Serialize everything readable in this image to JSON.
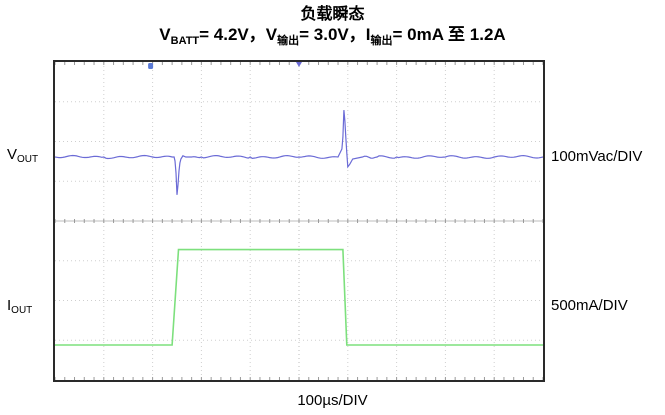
{
  "title": {
    "line1": "负载瞬态",
    "line2": {
      "v": "V",
      "batt_sub": "BATT",
      "batt_text": "= 4.2V，V",
      "vout_sub": "输出",
      "vout_text": "= 3.0V，I",
      "iout_sub": "输出",
      "iout_text": "= 0mA 至 1.2A"
    }
  },
  "channels": {
    "vout": {
      "main": "V",
      "sub": "OUT",
      "scale": "100mVac/DIV",
      "color": "#6b6bd6"
    },
    "iout": {
      "main": "I",
      "sub": "OUT",
      "scale": "500mA/DIV",
      "color": "#7de07d"
    }
  },
  "xscale": "100µs/DIV",
  "chart_data": {
    "type": "line",
    "x_unit": "µs",
    "xlim": [
      0,
      1000
    ],
    "divisions": {
      "x": 10,
      "y": 8
    },
    "grid": "dotted",
    "series": [
      {
        "name": "VOUT",
        "unit": "mV (AC coupled)",
        "scale_per_div": 100,
        "x": [
          0,
          100,
          200,
          244,
          246,
          248,
          250,
          252,
          254,
          256,
          258,
          262,
          268,
          280,
          300,
          400,
          500,
          580,
          588,
          590,
          592,
          594,
          596,
          598,
          600,
          604,
          610,
          630,
          660,
          700,
          800,
          900,
          1000
        ],
        "y": [
          0,
          0,
          0,
          0,
          -10,
          -40,
          -95,
          -70,
          -35,
          -15,
          -5,
          3,
          0,
          0,
          0,
          0,
          0,
          0,
          20,
          50,
          118,
          90,
          50,
          10,
          -25,
          -18,
          -5,
          0,
          0,
          0,
          0,
          0,
          0
        ]
      },
      {
        "name": "IOUT",
        "unit": "A",
        "scale_per_div": 0.5,
        "x": [
          0,
          240,
          253,
          590,
          598,
          1000
        ],
        "y": [
          0,
          0,
          1.2,
          1.2,
          0,
          0
        ]
      }
    ],
    "trigger_marker": {
      "x": 500
    },
    "left_marker": {
      "x": 200
    }
  }
}
